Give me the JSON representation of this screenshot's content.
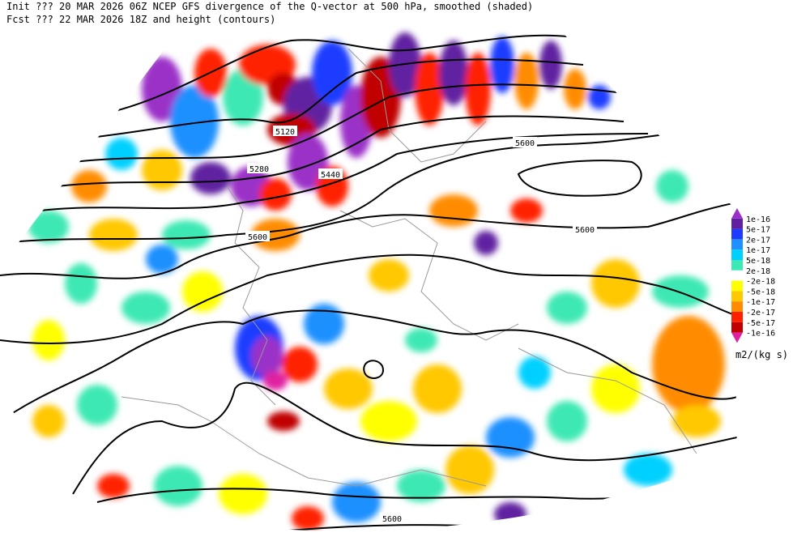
{
  "header": {
    "line1": "Init  ??? 20 MAR 2026 06Z  NCEP GFS divergence of the Q-vector at 500 hPa, smoothed (shaded)",
    "line2": "Fcst ??? 22 MAR 2026 18Z  and height (contours)"
  },
  "contour_labels": [
    "5120",
    "5280",
    "5440",
    "5600",
    "5600",
    "5600",
    "5600"
  ],
  "colorbar": {
    "labels": [
      "1e-16",
      "5e-17",
      "2e-17",
      "1e-17",
      "5e-18",
      "2e-18",
      "-2e-18",
      "-5e-18",
      "-1e-17",
      "-2e-17",
      "-5e-17",
      "-1e-16"
    ],
    "colors": [
      "#9b30c8",
      "#6020a0",
      "#1e3cff",
      "#1e90ff",
      "#00d0ff",
      "#3ce8b4",
      "#ffffff",
      "#ffff00",
      "#ffc800",
      "#ff8c00",
      "#ff2000",
      "#c00000",
      "#e020a0"
    ],
    "units": "m2/(kg s)"
  }
}
